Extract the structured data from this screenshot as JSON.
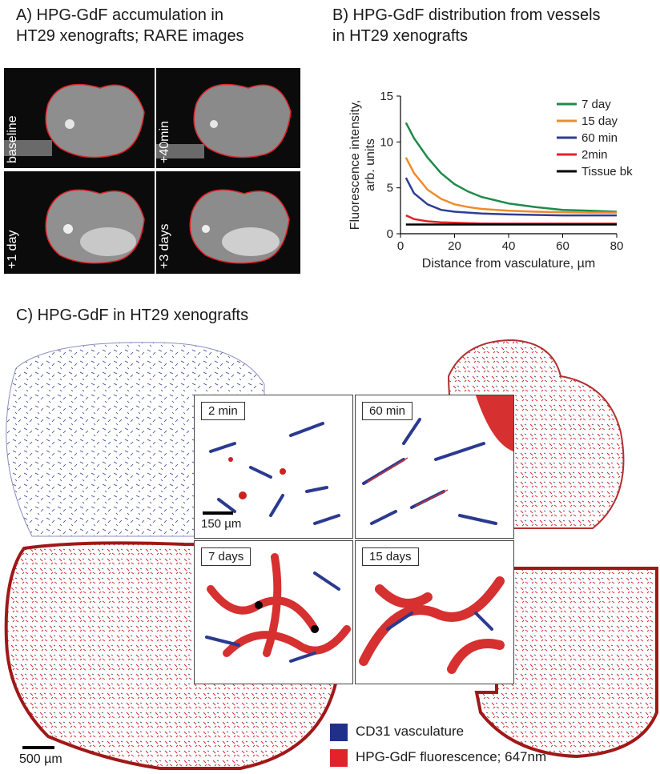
{
  "panelA": {
    "title": "A) HPG-GdF accumulation in\nHT29 xenografts; RARE images",
    "images": [
      {
        "label": "baseline"
      },
      {
        "label": "+40min"
      },
      {
        "label": "+1 day"
      },
      {
        "label": "+3 days"
      }
    ],
    "outline_color": "#e0242a"
  },
  "panelB": {
    "title": "B) HPG-GdF distribution from vessels\nin HT29 xenografts"
  },
  "panelC": {
    "title": "C) HPG-GdF in HT29 xenografts",
    "tiles": [
      {
        "label": "2 min"
      },
      {
        "label": "60 min"
      },
      {
        "label": "7 days"
      },
      {
        "label": "15 days"
      }
    ],
    "tile_scale_bar": "150 µm",
    "section_scale_bar": "500 µm",
    "legend": [
      {
        "label": "CD31 vasculature",
        "color": "#1f2f8a"
      },
      {
        "label": "HPG-GdF fluorescence; 647nm",
        "color": "#e0242a"
      }
    ]
  },
  "chart_data": {
    "type": "line",
    "ylabel": "Fluorescence intensity,\narb. units",
    "xlabel": "Distance from vasculature, µm",
    "xlim": [
      0,
      80
    ],
    "ylim": [
      0,
      15
    ],
    "xticks": [
      0,
      20,
      40,
      60,
      80
    ],
    "yticks": [
      0,
      5,
      10,
      15
    ],
    "legend_position": "top-right",
    "x": [
      2,
      5,
      10,
      15,
      20,
      25,
      30,
      40,
      50,
      60,
      70,
      80
    ],
    "series": [
      {
        "name": "7 day",
        "color": "#1e8a4a",
        "values": [
          12.1,
          10.4,
          8.3,
          6.6,
          5.4,
          4.6,
          4.0,
          3.3,
          2.9,
          2.6,
          2.5,
          2.4
        ]
      },
      {
        "name": "15 day",
        "color": "#f08a2a",
        "values": [
          8.3,
          6.6,
          4.8,
          3.8,
          3.2,
          2.9,
          2.7,
          2.5,
          2.4,
          2.35,
          2.3,
          2.3
        ]
      },
      {
        "name": "60 min",
        "color": "#2e3d94",
        "values": [
          6.1,
          4.4,
          3.2,
          2.6,
          2.4,
          2.3,
          2.2,
          2.1,
          2.05,
          2.0,
          2.0,
          2.0
        ]
      },
      {
        "name": "2min",
        "color": "#e0242a",
        "values": [
          2.0,
          1.6,
          1.35,
          1.25,
          1.2,
          1.15,
          1.12,
          1.1,
          1.1,
          1.1,
          1.1,
          1.1
        ]
      },
      {
        "name": "Tissue bk",
        "color": "#000000",
        "values": [
          1.0,
          1.0,
          1.0,
          1.0,
          1.0,
          1.0,
          1.0,
          1.0,
          1.0,
          1.0,
          1.0,
          1.0
        ]
      }
    ]
  }
}
